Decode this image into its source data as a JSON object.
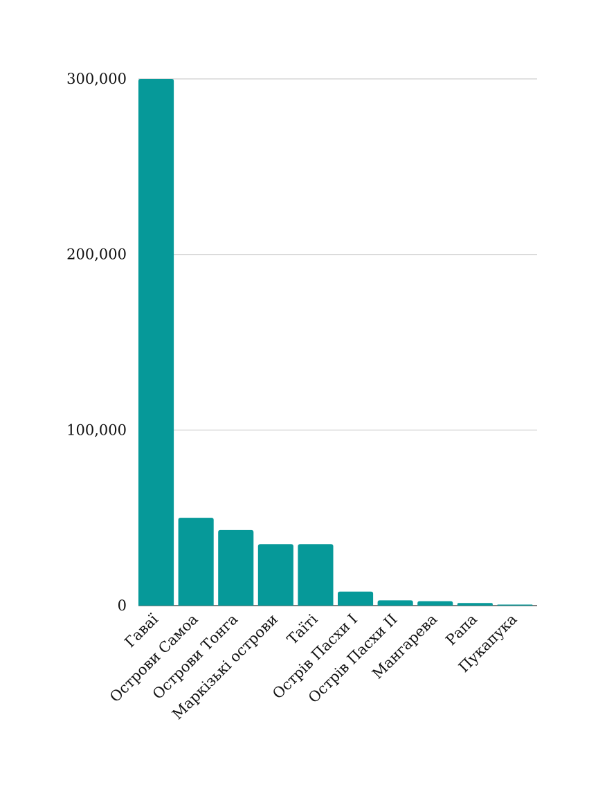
{
  "chart_data": {
    "type": "bar",
    "title": "",
    "xlabel": "",
    "ylabel": "",
    "categories": [
      "Гаваї",
      "Острови Самоа",
      "Острови Тонга",
      "Маркізькі острови",
      "Таїті",
      "Острів Пасхи I",
      "Острів Пасхи II",
      "Мангарева",
      "Рапа",
      "Пукапука"
    ],
    "values": [
      300000,
      50000,
      43000,
      35000,
      35000,
      8000,
      3000,
      2500,
      1500,
      600
    ],
    "ylim": [
      0,
      300000
    ],
    "yticks": [
      0,
      100000,
      200000,
      300000
    ],
    "ytick_labels": [
      "0",
      "100,000",
      "200,000",
      "300,000"
    ],
    "bar_color": "#069999",
    "grid": true,
    "legend": "none"
  }
}
